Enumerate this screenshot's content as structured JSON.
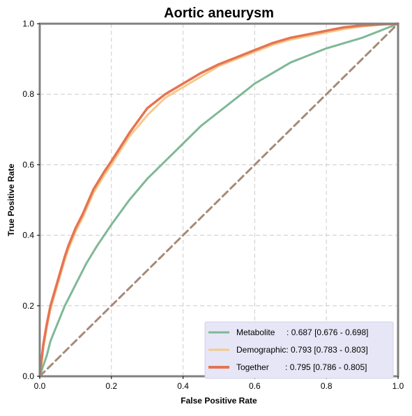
{
  "chart_data": {
    "type": "line",
    "title": "Aortic aneurysm",
    "xlabel": "False Positive Rate",
    "ylabel": "True Positive Rate",
    "xlim": [
      0,
      1
    ],
    "ylim": [
      0,
      1
    ],
    "xticks": [
      "0.0",
      "0.2",
      "0.4",
      "0.6",
      "0.8",
      "1.0"
    ],
    "yticks": [
      "0.0",
      "0.2",
      "0.4",
      "0.6",
      "0.8",
      "1.0"
    ],
    "grid": true,
    "legend_position": "bottom-right",
    "colors": {
      "Metabolite": "#7fb897",
      "Demographic": "#f7c98a",
      "Together": "#e57452",
      "Chance": "#a68a78",
      "legend_bg": "#e6e6f7",
      "axes": "#808080",
      "grid": "#cccccc"
    },
    "series": [
      {
        "name": "Metabolite",
        "legend_label": "Metabolite     : 0.687 [0.676 - 0.698]",
        "x": [
          0,
          0.01,
          0.02,
          0.03,
          0.05,
          0.07,
          0.1,
          0.13,
          0.16,
          0.2,
          0.25,
          0.3,
          0.35,
          0.4,
          0.45,
          0.5,
          0.55,
          0.6,
          0.65,
          0.7,
          0.75,
          0.8,
          0.85,
          0.9,
          0.95,
          1.0
        ],
        "y": [
          0,
          0.03,
          0.06,
          0.1,
          0.15,
          0.2,
          0.26,
          0.32,
          0.37,
          0.43,
          0.5,
          0.56,
          0.61,
          0.66,
          0.71,
          0.75,
          0.79,
          0.83,
          0.86,
          0.89,
          0.91,
          0.93,
          0.945,
          0.96,
          0.98,
          1.0
        ]
      },
      {
        "name": "Demographic",
        "legend_label": "Demographic: 0.793 [0.783 - 0.803]",
        "x": [
          0,
          0.005,
          0.01,
          0.02,
          0.03,
          0.05,
          0.07,
          0.08,
          0.1,
          0.12,
          0.15,
          0.18,
          0.2,
          0.25,
          0.3,
          0.35,
          0.4,
          0.45,
          0.5,
          0.55,
          0.6,
          0.65,
          0.7,
          0.75,
          0.8,
          0.85,
          0.9,
          0.95,
          1.0
        ],
        "y": [
          0,
          0.04,
          0.08,
          0.14,
          0.19,
          0.26,
          0.33,
          0.36,
          0.41,
          0.45,
          0.52,
          0.57,
          0.6,
          0.68,
          0.74,
          0.79,
          0.82,
          0.85,
          0.88,
          0.9,
          0.92,
          0.94,
          0.955,
          0.965,
          0.975,
          0.985,
          0.992,
          0.997,
          1.0
        ]
      },
      {
        "name": "Together",
        "legend_label": "Together       : 0.795 [0.786 - 0.805]",
        "x": [
          0,
          0.005,
          0.01,
          0.02,
          0.03,
          0.05,
          0.07,
          0.08,
          0.1,
          0.12,
          0.15,
          0.18,
          0.2,
          0.25,
          0.3,
          0.35,
          0.4,
          0.45,
          0.5,
          0.55,
          0.6,
          0.65,
          0.7,
          0.75,
          0.8,
          0.85,
          0.9,
          0.95,
          1.0
        ],
        "y": [
          0,
          0.045,
          0.09,
          0.15,
          0.2,
          0.27,
          0.34,
          0.37,
          0.42,
          0.46,
          0.53,
          0.58,
          0.61,
          0.69,
          0.76,
          0.8,
          0.83,
          0.86,
          0.885,
          0.905,
          0.925,
          0.945,
          0.96,
          0.97,
          0.98,
          0.99,
          0.995,
          0.998,
          1.0
        ]
      },
      {
        "name": "Chance",
        "x": [
          0,
          1
        ],
        "y": [
          0,
          1
        ]
      }
    ]
  }
}
